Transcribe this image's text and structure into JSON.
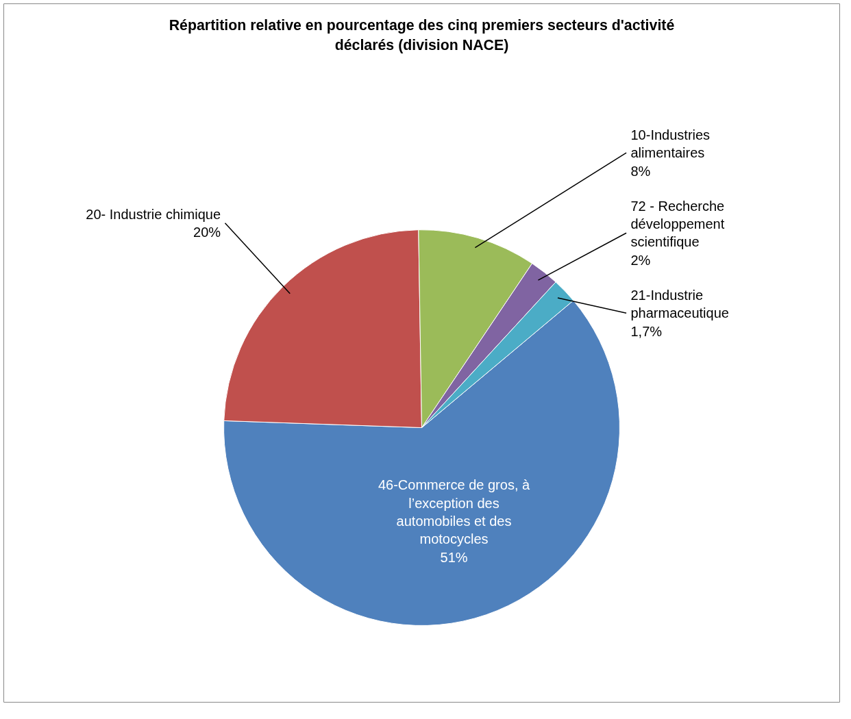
{
  "chart_data": {
    "type": "pie",
    "title": "Répartition relative en pourcentage des cinq premiers secteurs d'activité déclarés (division NACE)",
    "categories": [
      "46-Commerce de gros, à l’exception des automobiles et des motocycles",
      "20- Industrie chimique",
      "10-Industries alimentaires",
      "72 - Recherche développement scientifique",
      "21-Industrie pharmaceutique"
    ],
    "values": [
      51,
      20,
      8,
      2,
      1.7
    ],
    "value_labels": [
      "51%",
      "20%",
      "8%",
      "2%",
      "1,7%"
    ],
    "colors": [
      "#4f81bd",
      "#c0504d",
      "#9bbb59",
      "#8064a2",
      "#4bacc6"
    ]
  }
}
